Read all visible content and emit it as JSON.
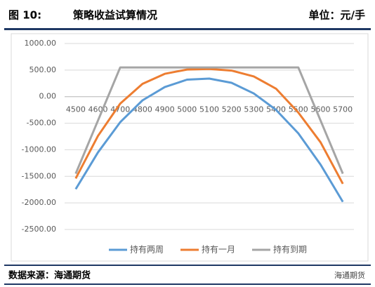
{
  "figure_label": "图 10:",
  "unit": "单位：元/手",
  "source": "数据来源：海通期货",
  "watermark": "海通期货",
  "chart_data": {
    "type": "line",
    "title": "策略收益试算情况",
    "categories": [
      "4500",
      "4600",
      "4700",
      "4800",
      "4900",
      "5000",
      "5100",
      "5200",
      "5300",
      "5400",
      "5500",
      "5600",
      "5700"
    ],
    "series": [
      {
        "name": "持有两周",
        "color": "#5b9bd5",
        "values": [
          -1740,
          -1050,
          -480,
          -70,
          180,
          320,
          340,
          260,
          60,
          -250,
          -690,
          -1280,
          -1980
        ]
      },
      {
        "name": "持有一月",
        "color": "#ed7d31",
        "values": [
          -1540,
          -740,
          -130,
          240,
          430,
          510,
          520,
          490,
          380,
          150,
          -300,
          -860,
          -1640
        ]
      },
      {
        "name": "持有到期",
        "color": "#a5a5a5",
        "values": [
          -1450,
          -450,
          550,
          550,
          550,
          550,
          550,
          550,
          550,
          550,
          550,
          -450,
          -1450
        ]
      }
    ],
    "ylim": [
      -2500,
      1000
    ],
    "yticks": [
      {
        "value": -2500,
        "label": "-2500.00"
      },
      {
        "value": -2000,
        "label": "-2000.00"
      },
      {
        "value": -1500,
        "label": "-1500.00"
      },
      {
        "value": -1000,
        "label": "-1000.00"
      },
      {
        "value": -500,
        "label": "-500.00"
      },
      {
        "value": 0,
        "label": "0.00"
      },
      {
        "value": 500,
        "label": "500.00"
      },
      {
        "value": 1000,
        "label": "1000.00"
      }
    ],
    "grid": true,
    "legend": "bottom"
  }
}
